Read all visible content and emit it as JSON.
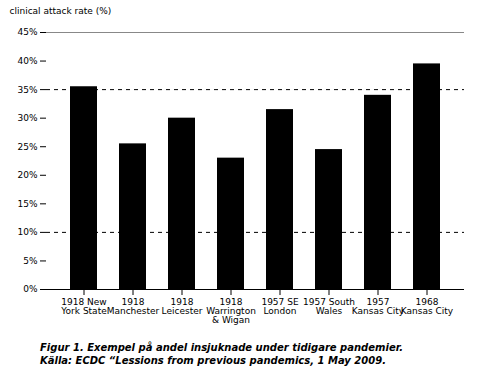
{
  "chart_data": {
    "type": "bar",
    "ylabel": "clinical attack rate (%)",
    "caption": "Figur 1. Exempel på andel insjuknade under tidigare pandemier.\nKälla: ECDC “Lessions from previous pandemics, 1 May 2009.",
    "categories": [
      "1918 New\nYork State",
      "1918\nManchester",
      "1918\nLeicester",
      "1918\nWarrington\n& Wigan",
      "1957 SE\nLondon",
      "1957 South\nWales",
      "1957\nKansas City",
      "1968\nKansas City"
    ],
    "values": [
      35.5,
      25.5,
      30.0,
      23.0,
      31.5,
      24.5,
      34.0,
      39.5
    ],
    "ylim": [
      0,
      45
    ],
    "yticks": [
      {
        "value": 0,
        "label": "0%"
      },
      {
        "value": 5,
        "label": "5%"
      },
      {
        "value": 10,
        "label": "10%"
      },
      {
        "value": 15,
        "label": "15%"
      },
      {
        "value": 20,
        "label": "20%"
      },
      {
        "value": 25,
        "label": "25%"
      },
      {
        "value": 30,
        "label": "30%"
      },
      {
        "value": 35,
        "label": "35%"
      },
      {
        "value": 40,
        "label": "40%"
      },
      {
        "value": 45,
        "label": "45%"
      }
    ],
    "dashed_lines": [
      10,
      35
    ],
    "grid": false
  }
}
